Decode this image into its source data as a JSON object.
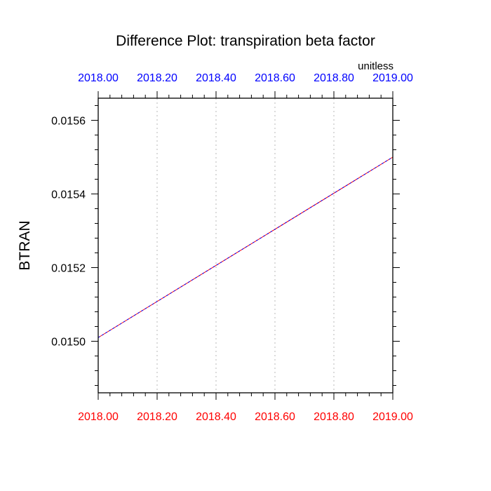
{
  "colors": {
    "background": "#ffffff",
    "axis": "#000000",
    "grid": "#c8c8c8",
    "top_tick_labels": "#0000ff",
    "bottom_tick_labels": "#ff0000",
    "series_a": "#0000ff",
    "series_b": "#ff0000"
  },
  "chart_data": {
    "type": "line",
    "title": "Difference Plot: transpiration beta factor",
    "units": "unitless",
    "ylabel": "BTRAN",
    "xlabel": "",
    "xlim": [
      2018.0,
      2019.0
    ],
    "ylim": [
      0.01486,
      0.01566
    ],
    "grid": "vertical dotted at x ticks",
    "x_ticks": [
      2018.0,
      2018.2,
      2018.4,
      2018.6,
      2018.8,
      2019.0
    ],
    "x_tick_labels_top": [
      "2018.00",
      "2018.20",
      "2018.40",
      "2018.60",
      "2018.80",
      "2019.00"
    ],
    "x_tick_labels_bottom": [
      "2018.00",
      "2018.20",
      "2018.40",
      "2018.60",
      "2018.80",
      "2019.00"
    ],
    "y_ticks": [
      0.015,
      0.0152,
      0.0154,
      0.0156
    ],
    "y_tick_labels": [
      "0.0150",
      "0.0152",
      "0.0154",
      "0.0156"
    ],
    "y_minor_step": 4e-05,
    "x_minor_step": 0.04,
    "series": [
      {
        "color": "#ff0000",
        "style": "solid",
        "x": [
          2018.0,
          2019.0
        ],
        "y": [
          0.01501,
          0.0155
        ]
      },
      {
        "color": "#0000ff",
        "style": "dashed",
        "x": [
          2018.0,
          2019.0
        ],
        "y": [
          0.01501,
          0.0155
        ]
      }
    ]
  }
}
